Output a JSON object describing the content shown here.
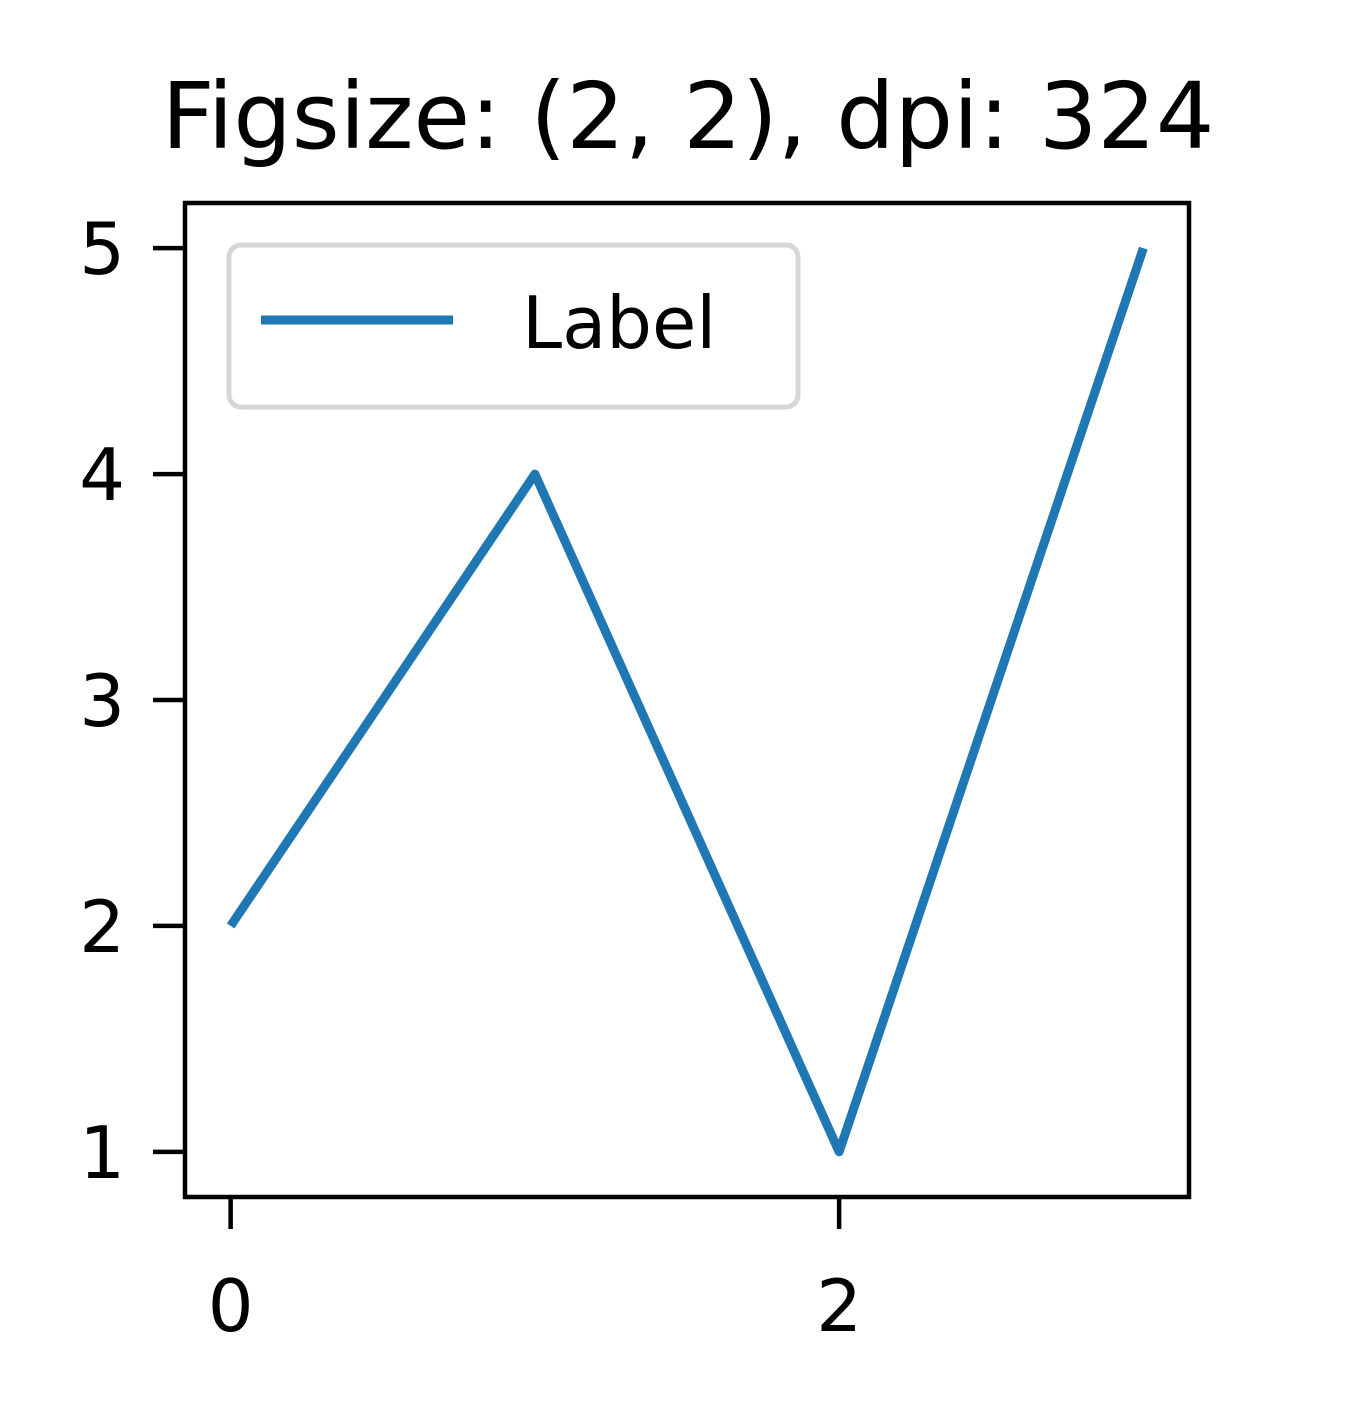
{
  "chart_data": {
    "type": "line",
    "title": "Figsize: (2, 2), dpi: 324",
    "xlabel": "",
    "ylabel": "",
    "x": [
      0,
      1,
      2,
      3
    ],
    "series": [
      {
        "name": "Label",
        "values": [
          2,
          4,
          1,
          5
        ],
        "color": "#1f77b4"
      }
    ],
    "xlim": [
      -0.15,
      3.15
    ],
    "ylim": [
      0.8,
      5.2
    ],
    "xticks": [
      0,
      2
    ],
    "xtick_labels": [
      "0",
      "2"
    ],
    "yticks": [
      1,
      2,
      3,
      4,
      5
    ],
    "ytick_labels": [
      "1",
      "2",
      "3",
      "4",
      "5"
    ],
    "grid": false,
    "legend_position": "upper left"
  }
}
